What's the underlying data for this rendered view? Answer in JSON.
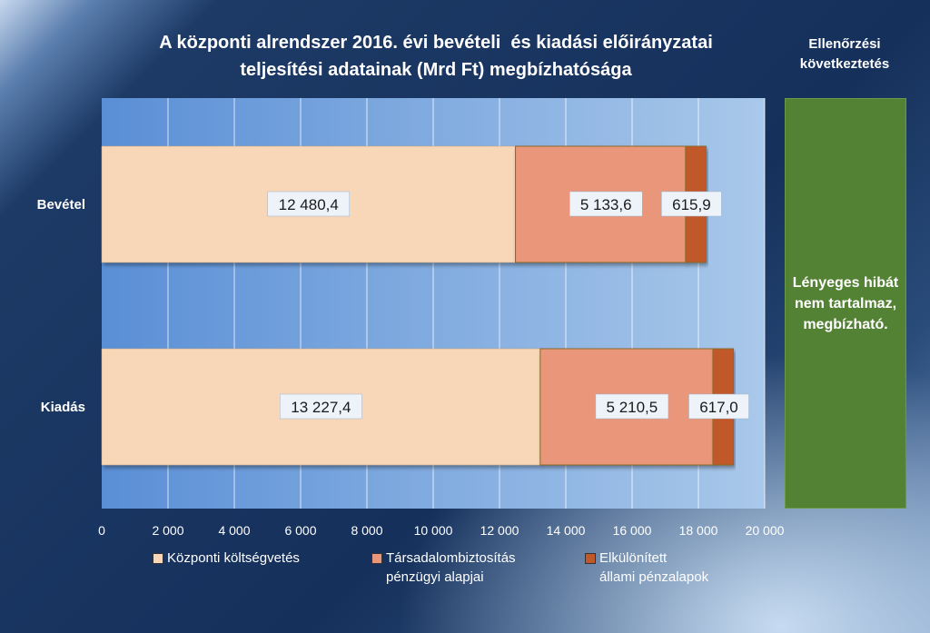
{
  "title_lines": [
    "A központi alrendszer 2016. évi bevételi  és kiadási előirányzatai",
    "teljesítési adatainak (Mrd Ft) megbízhatósága"
  ],
  "conclusion": {
    "header": "Ellenőrzési következtetés",
    "text": "Lényeges hibát nem tartalmaz, megbízható.",
    "color": "#548235"
  },
  "chart_data": {
    "type": "bar",
    "orientation": "horizontal",
    "stacked": true,
    "title": "A központi alrendszer 2016. évi bevételi  és kiadási előirányzatai teljesítési adatainak (Mrd Ft) megbízhatósága",
    "categories": [
      "Bevétel",
      "Kiadás"
    ],
    "series": [
      {
        "name": "Központi költségvetés",
        "values": [
          12480.4,
          13227.4
        ],
        "labels": [
          "12 480,4",
          "13 227,4"
        ],
        "color": "#f8d6b8"
      },
      {
        "name": "Társadalombiztosítás pénzügyi alapjai",
        "values": [
          5133.6,
          5210.5
        ],
        "labels": [
          "5 133,6",
          "5 210,5"
        ],
        "color": "#e9967a"
      },
      {
        "name": "Elkülönített állami pénzalapok",
        "values": [
          615.9,
          617.0
        ],
        "labels": [
          "615,9",
          "617,0"
        ],
        "color": "#c0582a"
      }
    ],
    "xlim": [
      0,
      20000
    ],
    "xticks": [
      0,
      2000,
      4000,
      6000,
      8000,
      10000,
      12000,
      14000,
      16000,
      18000,
      20000
    ],
    "xtick_labels": [
      "0",
      "2 000",
      "4 000",
      "6 000",
      "8 000",
      "10 000",
      "12 000",
      "14 000",
      "16 000",
      "18 000",
      "20 000"
    ],
    "grid": true,
    "legend": "bottom",
    "legend_lines": [
      [
        "Központi költségvetés"
      ],
      [
        "Társadalombiztosítás",
        "pénzügyi alapjai"
      ],
      [
        "Elkülönített",
        "állami pénzalapok"
      ]
    ]
  }
}
